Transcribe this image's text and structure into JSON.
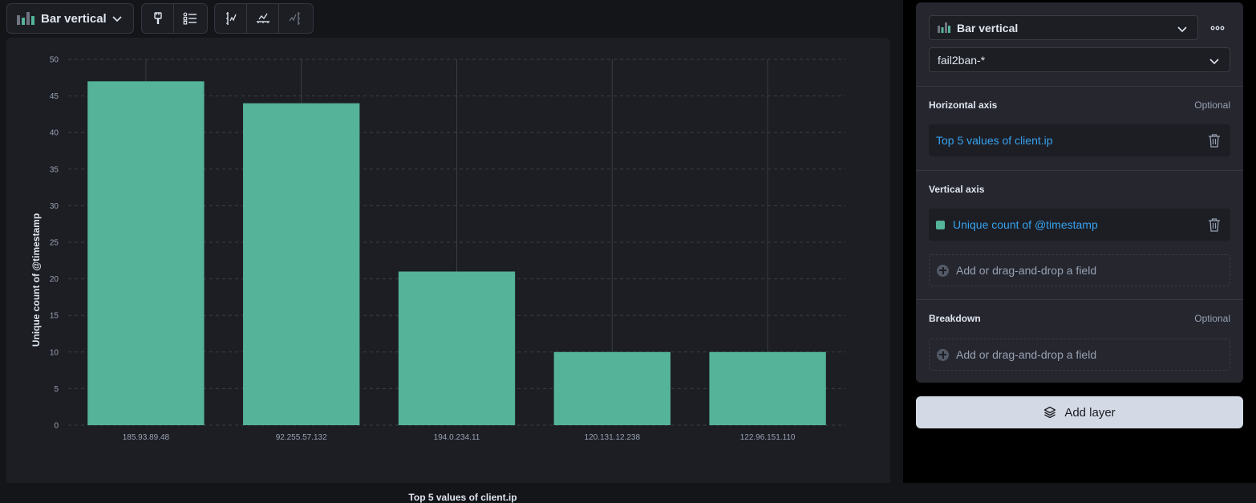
{
  "toolbar": {
    "chart_switch_label": "Bar vertical",
    "icons": [
      "bar-chart-icon",
      "paintbrush-icon",
      "legend-list-icon",
      "left-axis-icon",
      "bottom-axis-icon",
      "right-axis-icon"
    ]
  },
  "chart_data": {
    "type": "bar",
    "categories": [
      "185.93.89.48",
      "92.255.57.132",
      "194.0.234.11",
      "120.131.12.238",
      "122.96.151.110"
    ],
    "values": [
      47,
      44,
      21,
      10,
      10
    ],
    "xlabel": "Top 5 values of client.ip",
    "ylabel": "Unique count of @timestamp",
    "ylim": [
      0,
      50
    ],
    "yticks": [
      0,
      5,
      10,
      15,
      20,
      25,
      30,
      35,
      40,
      45,
      50
    ],
    "grid": true,
    "bar_color": "#54b399"
  },
  "config": {
    "vis_type_label": "Bar vertical",
    "index_pattern": "fail2ban-*",
    "horizontal_axis": {
      "title": "Horizontal axis",
      "optional": "Optional",
      "dimension": "Top 5 values of client.ip"
    },
    "vertical_axis": {
      "title": "Vertical axis",
      "dimension": "Unique count of @timestamp",
      "swatch_color": "#54b399",
      "dropzone": "Add or drag-and-drop a field"
    },
    "breakdown": {
      "title": "Breakdown",
      "optional": "Optional",
      "dropzone": "Add or drag-and-drop a field"
    }
  },
  "add_layer_label": "Add layer"
}
